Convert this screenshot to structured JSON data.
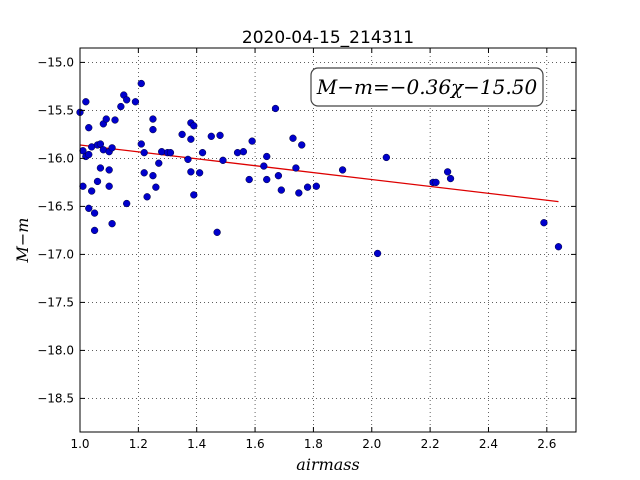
{
  "chart_data": {
    "type": "scatter",
    "title": "2020-04-15_214311",
    "xlabel": "airmass",
    "ylabel": "M−m",
    "xlim": [
      1.0,
      2.7
    ],
    "ylim": [
      -18.85,
      -14.85
    ],
    "y_inverted": true,
    "grid": true,
    "annotation": "M−m=−0.36χ−15.50",
    "annotation_position": "top-right",
    "x_ticks": [
      "1.0",
      "1.2",
      "1.4",
      "1.6",
      "1.8",
      "2.0",
      "2.2",
      "2.4",
      "2.6"
    ],
    "y_ticks": [
      "−15.0",
      "−15.5",
      "−16.0",
      "−16.5",
      "−17.0",
      "−17.5",
      "−18.0",
      "−18.5"
    ],
    "marker_color": "#0000cc",
    "fit_color": "#dd0000",
    "fit": {
      "slope": -0.36,
      "intercept": -15.5,
      "x_range": [
        1.0,
        2.64
      ]
    },
    "points": [
      [
        1.0,
        -15.52
      ],
      [
        1.01,
        -15.92
      ],
      [
        1.01,
        -16.29
      ],
      [
        1.02,
        -15.98
      ],
      [
        1.02,
        -15.41
      ],
      [
        1.03,
        -15.68
      ],
      [
        1.03,
        -15.96
      ],
      [
        1.03,
        -16.52
      ],
      [
        1.04,
        -16.34
      ],
      [
        1.04,
        -15.88
      ],
      [
        1.05,
        -16.57
      ],
      [
        1.05,
        -16.75
      ],
      [
        1.06,
        -15.86
      ],
      [
        1.06,
        -16.24
      ],
      [
        1.07,
        -15.85
      ],
      [
        1.07,
        -16.1
      ],
      [
        1.08,
        -15.91
      ],
      [
        1.08,
        -15.64
      ],
      [
        1.09,
        -15.59
      ],
      [
        1.1,
        -15.93
      ],
      [
        1.1,
        -16.12
      ],
      [
        1.1,
        -16.29
      ],
      [
        1.11,
        -16.68
      ],
      [
        1.11,
        -15.89
      ],
      [
        1.12,
        -15.6
      ],
      [
        1.14,
        -15.46
      ],
      [
        1.15,
        -15.34
      ],
      [
        1.16,
        -15.39
      ],
      [
        1.16,
        -16.47
      ],
      [
        1.19,
        -15.41
      ],
      [
        1.21,
        -15.85
      ],
      [
        1.21,
        -15.22
      ],
      [
        1.22,
        -15.94
      ],
      [
        1.22,
        -16.15
      ],
      [
        1.23,
        -16.4
      ],
      [
        1.25,
        -15.59
      ],
      [
        1.25,
        -15.7
      ],
      [
        1.25,
        -16.18
      ],
      [
        1.26,
        -16.3
      ],
      [
        1.27,
        -16.05
      ],
      [
        1.28,
        -15.93
      ],
      [
        1.3,
        -15.94
      ],
      [
        1.31,
        -15.94
      ],
      [
        1.35,
        -15.75
      ],
      [
        1.37,
        -16.01
      ],
      [
        1.38,
        -15.63
      ],
      [
        1.38,
        -15.8
      ],
      [
        1.38,
        -16.14
      ],
      [
        1.39,
        -15.66
      ],
      [
        1.39,
        -16.38
      ],
      [
        1.41,
        -16.15
      ],
      [
        1.42,
        -15.94
      ],
      [
        1.45,
        -15.77
      ],
      [
        1.47,
        -16.77
      ],
      [
        1.48,
        -15.76
      ],
      [
        1.49,
        -16.02
      ],
      [
        1.54,
        -15.94
      ],
      [
        1.56,
        -15.93
      ],
      [
        1.58,
        -16.22
      ],
      [
        1.59,
        -15.82
      ],
      [
        1.63,
        -16.08
      ],
      [
        1.64,
        -15.98
      ],
      [
        1.64,
        -16.22
      ],
      [
        1.67,
        -15.48
      ],
      [
        1.68,
        -16.18
      ],
      [
        1.69,
        -16.33
      ],
      [
        1.73,
        -15.79
      ],
      [
        1.74,
        -16.1
      ],
      [
        1.75,
        -16.36
      ],
      [
        1.76,
        -15.86
      ],
      [
        1.78,
        -16.3
      ],
      [
        1.81,
        -16.29
      ],
      [
        1.9,
        -16.12
      ],
      [
        2.02,
        -16.99
      ],
      [
        2.05,
        -15.99
      ],
      [
        2.21,
        -16.25
      ],
      [
        2.22,
        -16.25
      ],
      [
        2.26,
        -16.14
      ],
      [
        2.27,
        -16.21
      ],
      [
        2.59,
        -16.67
      ],
      [
        2.64,
        -16.92
      ]
    ]
  }
}
